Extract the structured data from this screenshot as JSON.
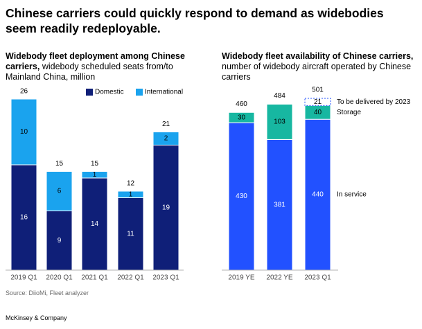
{
  "headline": "Chinese carriers could quickly respond to demand as widebodies seem readily redeployable.",
  "colors": {
    "domestic": "#0f1f78",
    "international": "#1aa3ee",
    "in_service": "#2251ff",
    "storage": "#17b7a1",
    "to_be_delivered_border": "#2251ff",
    "axis": "#b3b3b3",
    "tick_text": "#4d4d4d"
  },
  "left_chart": {
    "title_bold": "Widebody fleet deployment among Chinese carriers,",
    "title_rest": " widebody scheduled seats from/to Mainland China, million"
  },
  "right_chart": {
    "title_bold": "Widebody fleet availability of Chinese carriers,",
    "title_rest": " number of widebody aircraft operated by Chinese carriers"
  },
  "source": "Source: DiioMi, Fleet analyzer",
  "brand": "McKinsey & Company",
  "chart_data": [
    {
      "type": "bar",
      "stacked": true,
      "categories": [
        "2019 Q1",
        "2020 Q1",
        "2021 Q1",
        "2022 Q1",
        "2023 Q1"
      ],
      "series": [
        {
          "name": "Domestic",
          "values": [
            16,
            9,
            14,
            11,
            19
          ]
        },
        {
          "name": "International",
          "values": [
            10,
            6,
            1,
            1,
            2
          ]
        }
      ],
      "totals": [
        26,
        15,
        15,
        12,
        21
      ],
      "legend": [
        "Domestic",
        "International"
      ],
      "ylim": [
        0,
        26
      ]
    },
    {
      "type": "bar",
      "stacked": true,
      "categories": [
        "2019 YE",
        "2022 YE",
        "2023 Q1"
      ],
      "series": [
        {
          "name": "In service",
          "values": [
            430,
            381,
            440
          ]
        },
        {
          "name": "Storage",
          "values": [
            30,
            103,
            40
          ]
        },
        {
          "name": "To be delivered by 2023",
          "values": [
            0,
            0,
            21
          ]
        }
      ],
      "totals": [
        460,
        484,
        501
      ],
      "ylim": [
        0,
        501
      ]
    }
  ]
}
